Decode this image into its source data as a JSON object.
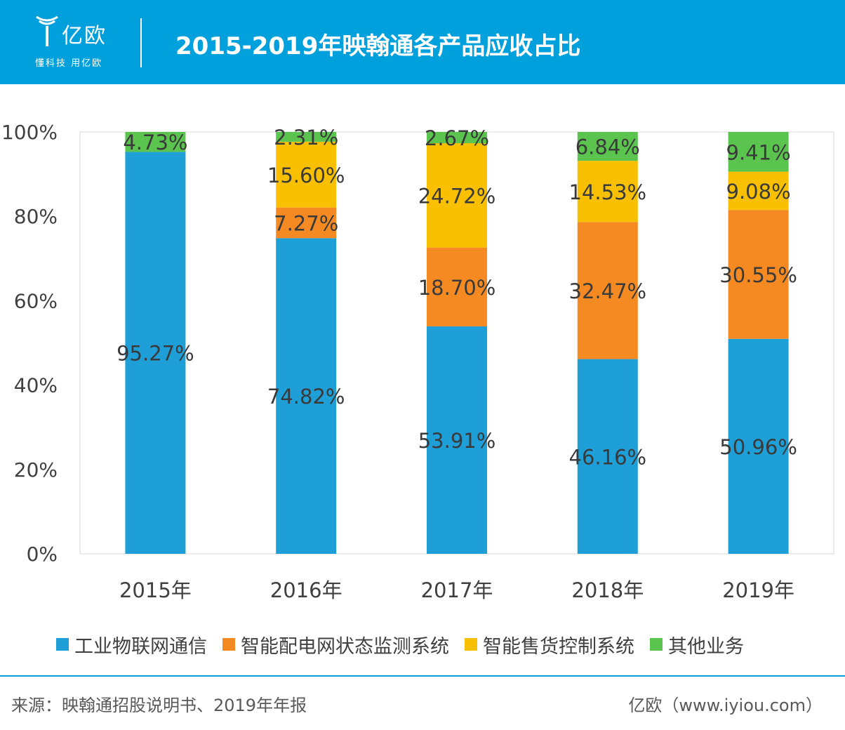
{
  "header": {
    "logo_name": "亿欧",
    "logo_slogan": "懂科技 用亿欧",
    "title": "2015-2019年映翰通各产品应收占比"
  },
  "chart_data": {
    "type": "bar",
    "stacked": true,
    "categories": [
      "2015年",
      "2016年",
      "2017年",
      "2018年",
      "2019年"
    ],
    "series": [
      {
        "name": "工业物联网通信",
        "color": "#1e9fd8",
        "values": [
          95.27,
          74.82,
          53.91,
          46.16,
          50.96
        ]
      },
      {
        "name": "智能配电网状态监测系统",
        "color": "#f58a23",
        "values": [
          0,
          7.27,
          18.7,
          32.47,
          30.55
        ]
      },
      {
        "name": "智能售货控制系统",
        "color": "#f8c000",
        "values": [
          0,
          15.6,
          24.72,
          14.53,
          9.08
        ]
      },
      {
        "name": "其他业务",
        "color": "#5bc44f",
        "values": [
          4.73,
          2.31,
          2.67,
          6.84,
          9.41
        ]
      }
    ],
    "labels": [
      [
        "95.27%",
        "74.82%",
        "53.91%",
        "46.16%",
        "50.96%"
      ],
      [
        "",
        "7.27%",
        "18.70%",
        "32.47%",
        "30.55%"
      ],
      [
        "",
        "15.60%",
        "24.72%",
        "14.53%",
        "9.08%"
      ],
      [
        "4.73%",
        "2.31%",
        "2.67%",
        "6.84%",
        "9.41%"
      ]
    ],
    "yticks": [
      "0%",
      "20%",
      "40%",
      "60%",
      "80%",
      "100%"
    ],
    "ylim": [
      0,
      100
    ],
    "legend_position": "bottom"
  },
  "footer": {
    "source": "来源：映翰通招股说明书、2019年年报",
    "site": "亿欧（www.iyiou.com）"
  }
}
